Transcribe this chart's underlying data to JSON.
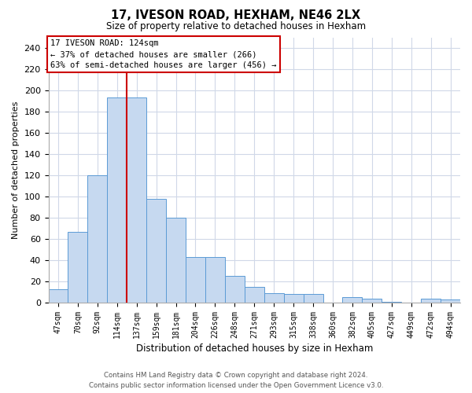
{
  "title": "17, IVESON ROAD, HEXHAM, NE46 2LX",
  "subtitle": "Size of property relative to detached houses in Hexham",
  "xlabel": "Distribution of detached houses by size in Hexham",
  "ylabel": "Number of detached properties",
  "categories": [
    "47sqm",
    "70sqm",
    "92sqm",
    "114sqm",
    "137sqm",
    "159sqm",
    "181sqm",
    "204sqm",
    "226sqm",
    "248sqm",
    "271sqm",
    "293sqm",
    "315sqm",
    "338sqm",
    "360sqm",
    "382sqm",
    "405sqm",
    "427sqm",
    "449sqm",
    "472sqm",
    "494sqm"
  ],
  "values": [
    13,
    67,
    120,
    193,
    193,
    98,
    80,
    43,
    43,
    25,
    15,
    9,
    8,
    8,
    0,
    5,
    4,
    1,
    0,
    4,
    3
  ],
  "bar_color": "#c6d9f0",
  "bar_edge_color": "#5b9bd5",
  "vline_x_index": 3,
  "vline_color": "#cc0000",
  "annotation_title": "17 IVESON ROAD: 124sqm",
  "annotation_line1": "← 37% of detached houses are smaller (266)",
  "annotation_line2": "63% of semi-detached houses are larger (456) →",
  "annotation_box_edge": "#cc0000",
  "ylim": [
    0,
    250
  ],
  "yticks": [
    0,
    20,
    40,
    60,
    80,
    100,
    120,
    140,
    160,
    180,
    200,
    220,
    240
  ],
  "footer_line1": "Contains HM Land Registry data © Crown copyright and database right 2024.",
  "footer_line2": "Contains public sector information licensed under the Open Government Licence v3.0.",
  "bg_color": "#ffffff",
  "grid_color": "#d0d8e8"
}
